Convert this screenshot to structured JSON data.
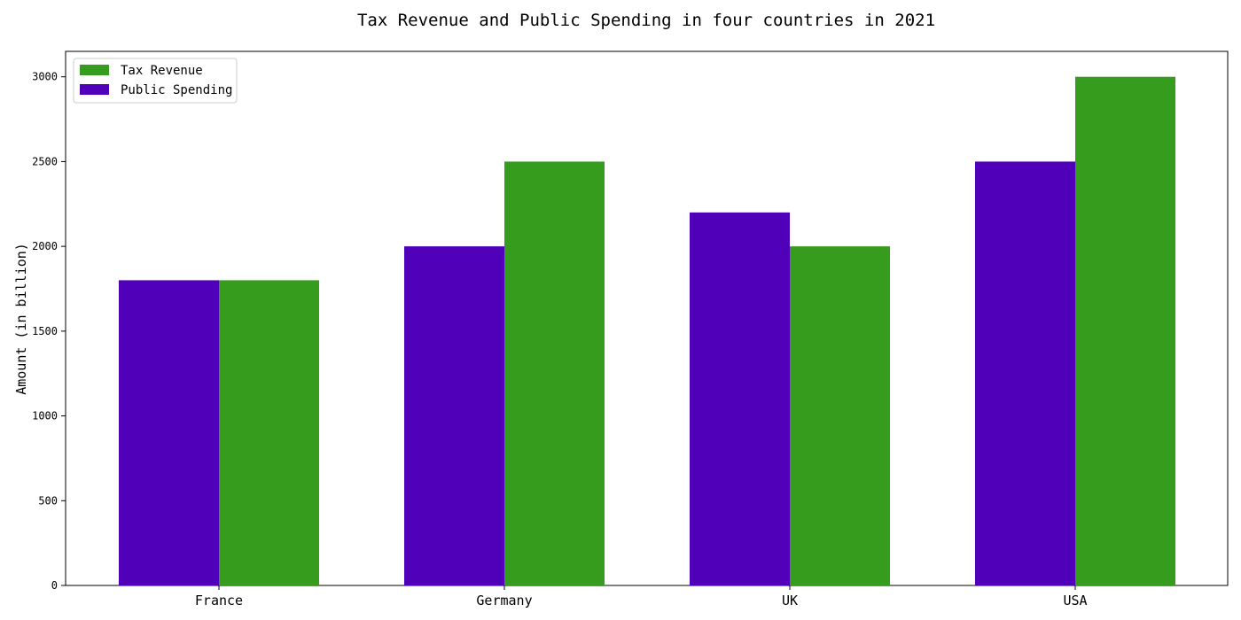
{
  "chart_data": {
    "type": "bar",
    "title": "Tax Revenue and Public Spending in four countries in 2021",
    "xlabel": "",
    "ylabel": "Amount (in billion)",
    "categories": [
      "France",
      "Germany",
      "UK",
      "USA"
    ],
    "series": [
      {
        "name": "Public Spending",
        "values": [
          1800,
          2000,
          2200,
          2500
        ],
        "color": "#5000b8"
      },
      {
        "name": "Tax Revenue",
        "values": [
          1800,
          2500,
          2000,
          3000
        ],
        "color": "#369c1d"
      }
    ],
    "ylim": [
      0,
      3150
    ],
    "yticks": [
      0,
      500,
      1000,
      1500,
      2000,
      2500,
      3000
    ],
    "legend": {
      "placement": "top-left",
      "entries": [
        {
          "label": "Tax Revenue",
          "color": "#369c1d"
        },
        {
          "label": "Public Spending",
          "color": "#5000b8"
        }
      ]
    },
    "grid": false
  }
}
